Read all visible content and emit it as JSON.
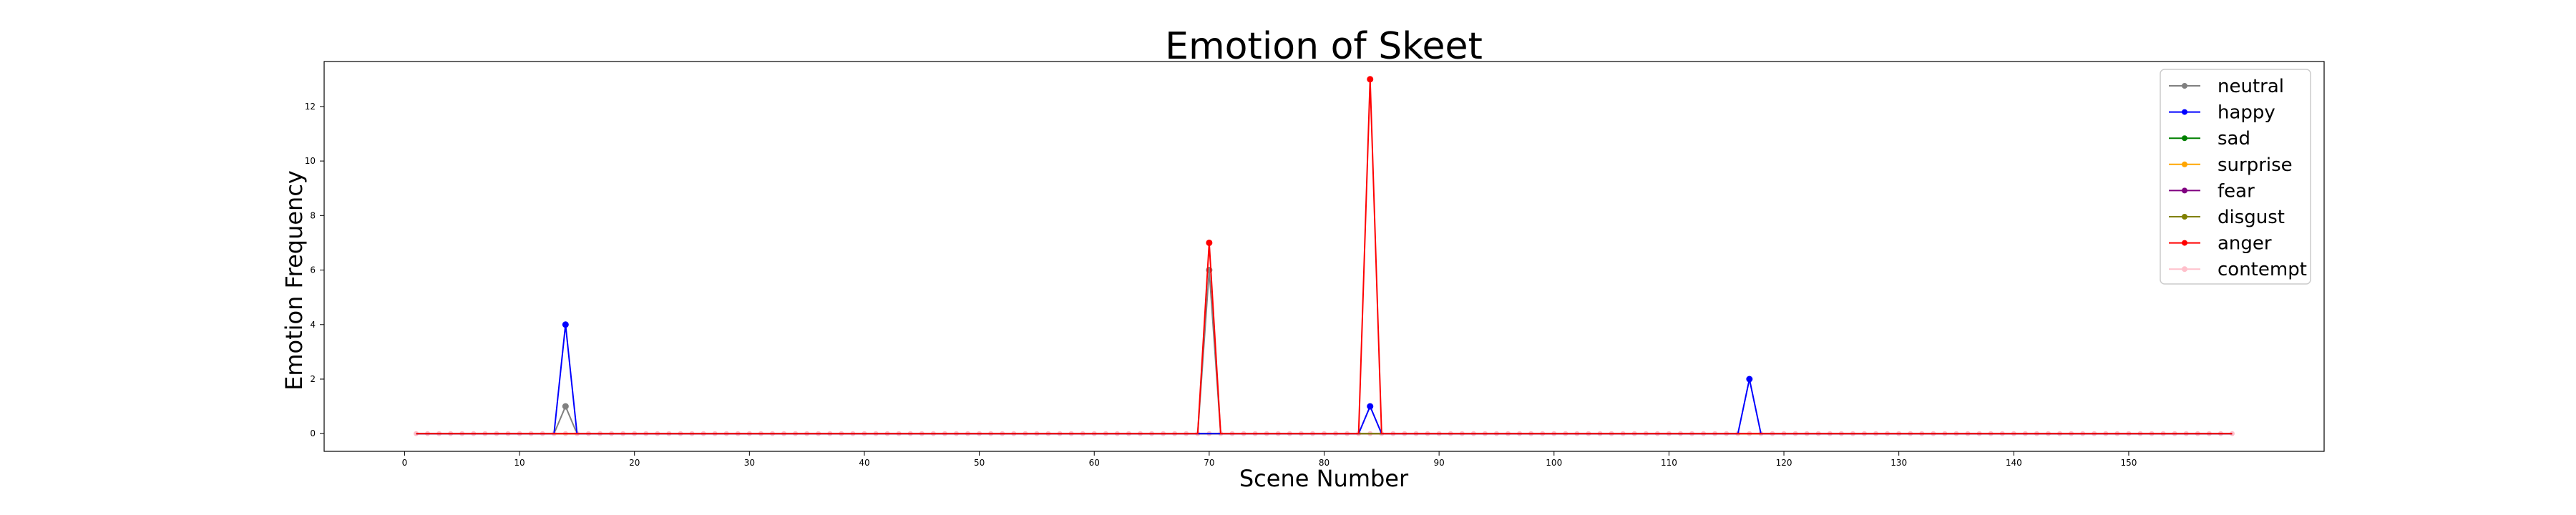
{
  "chart_data": {
    "type": "line",
    "title": "Emotion of Skeet",
    "xlabel": "Scene Number",
    "ylabel": "Emotion Frequency",
    "xlim": [
      -7,
      167
    ],
    "ylim": [
      -0.65,
      13.65
    ],
    "xticks": [
      0,
      10,
      20,
      30,
      40,
      50,
      60,
      70,
      80,
      90,
      100,
      110,
      120,
      130,
      140,
      150
    ],
    "yticks": [
      0,
      2,
      4,
      6,
      8,
      10,
      12
    ],
    "x_start": 1,
    "x_end": 159,
    "grid": false,
    "legend_position": "top-right",
    "series": [
      {
        "name": "neutral",
        "color": "#808080",
        "spikes": {
          "14": 1,
          "70": 6
        }
      },
      {
        "name": "happy",
        "color": "#0000ff",
        "spikes": {
          "14": 4,
          "84": 1,
          "117": 2
        }
      },
      {
        "name": "sad",
        "color": "#008000",
        "spikes": {}
      },
      {
        "name": "surprise",
        "color": "#ffa500",
        "spikes": {}
      },
      {
        "name": "fear",
        "color": "#800080",
        "spikes": {}
      },
      {
        "name": "disgust",
        "color": "#808000",
        "spikes": {}
      },
      {
        "name": "anger",
        "color": "#ff0000",
        "spikes": {
          "70": 7,
          "84": 13
        }
      },
      {
        "name": "contempt",
        "color": "#ffc0cb",
        "spikes": {}
      }
    ]
  }
}
